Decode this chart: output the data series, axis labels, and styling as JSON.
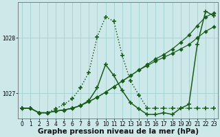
{
  "title": "Graphe pression niveau de la mer (hPa)",
  "background_color": "#cce8e8",
  "line_color": "#1a5c1a",
  "xlim": [
    -0.5,
    23.5
  ],
  "ylim": [
    1026.55,
    1028.65
  ],
  "yticks": [
    1027,
    1028
  ],
  "xticks": [
    0,
    1,
    2,
    3,
    4,
    5,
    6,
    7,
    8,
    9,
    10,
    11,
    12,
    13,
    14,
    15,
    16,
    17,
    18,
    19,
    20,
    21,
    22,
    23
  ],
  "series": [
    {
      "x": [
        0,
        1,
        2,
        3,
        4,
        5,
        6,
        7,
        8,
        9,
        10,
        11,
        12,
        13,
        14,
        15,
        16,
        17,
        18,
        19,
        20,
        21,
        22,
        23
      ],
      "y": [
        1026.73,
        1026.73,
        1026.65,
        1026.65,
        1026.68,
        1026.7,
        1026.73,
        1026.78,
        1026.85,
        1026.93,
        1027.02,
        1027.12,
        1027.22,
        1027.32,
        1027.42,
        1027.5,
        1027.58,
        1027.65,
        1027.72,
        1027.8,
        1027.88,
        1028.0,
        1028.12,
        1028.2
      ],
      "style": "-",
      "marker": "D",
      "markersize": 2.0,
      "linewidth": 0.9,
      "markevery": 1
    },
    {
      "x": [
        0,
        1,
        2,
        3,
        4,
        5,
        6,
        7,
        8,
        9,
        10,
        11,
        12,
        13,
        14,
        15,
        16,
        17,
        18,
        19,
        20,
        21,
        22,
        23
      ],
      "y": [
        1026.73,
        1026.73,
        1026.65,
        1026.65,
        1026.68,
        1026.7,
        1026.73,
        1026.78,
        1026.85,
        1026.93,
        1027.02,
        1027.12,
        1027.22,
        1027.32,
        1027.42,
        1027.52,
        1027.62,
        1027.7,
        1027.8,
        1027.92,
        1028.05,
        1028.22,
        1028.38,
        1028.45
      ],
      "style": "-",
      "marker": "D",
      "markersize": 2.0,
      "linewidth": 0.9,
      "markevery": 1
    },
    {
      "x": [
        0,
        1,
        2,
        3,
        4,
        5,
        6,
        7,
        8,
        9,
        10,
        11,
        12,
        13,
        14,
        15,
        16,
        17,
        18,
        19,
        20,
        21,
        22,
        23
      ],
      "y": [
        1026.73,
        1026.73,
        1026.65,
        1026.65,
        1026.72,
        1026.8,
        1026.9,
        1027.1,
        1027.38,
        1028.02,
        1028.38,
        1028.3,
        1027.68,
        1027.22,
        1026.97,
        1026.73,
        1026.73,
        1026.73,
        1026.73,
        1026.73,
        1026.73,
        1026.73,
        1026.73,
        1026.73
      ],
      "style": ":",
      "marker": "+",
      "markersize": 4,
      "linewidth": 1.1,
      "markevery": 1
    },
    {
      "x": [
        0,
        1,
        2,
        3,
        4,
        5,
        6,
        7,
        8,
        9,
        10,
        11,
        12,
        13,
        14,
        15,
        16,
        17,
        18,
        19,
        20,
        21,
        22,
        23
      ],
      "y": [
        1026.73,
        1026.73,
        1026.65,
        1026.65,
        1026.68,
        1026.7,
        1026.73,
        1026.78,
        1026.87,
        1027.1,
        1027.52,
        1027.32,
        1027.05,
        1026.83,
        1026.72,
        1026.62,
        1026.62,
        1026.65,
        1026.62,
        1026.73,
        1026.8,
        1027.88,
        1028.48,
        1028.4
      ],
      "style": "-",
      "marker": "+",
      "markersize": 4,
      "linewidth": 1.1,
      "markevery": 1
    }
  ],
  "grid_color": "#99cccc",
  "tick_fontsize": 5.5,
  "label_fontsize": 7.5
}
